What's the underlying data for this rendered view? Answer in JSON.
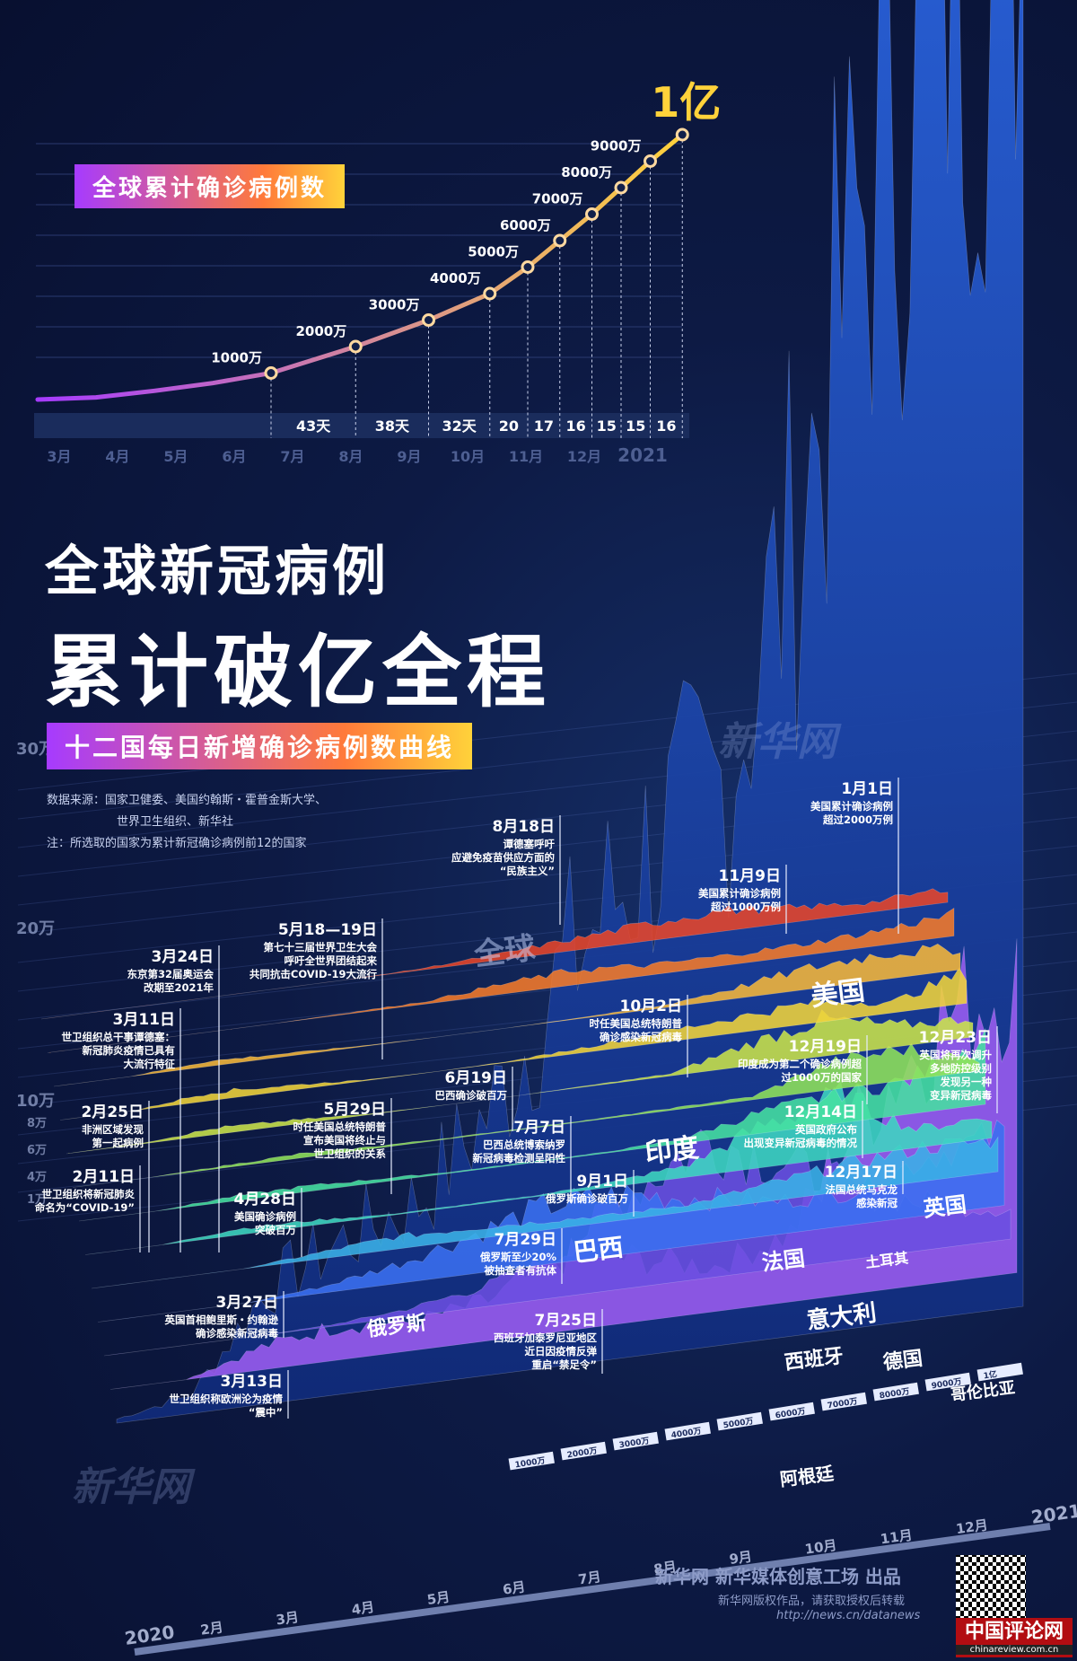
{
  "top_chart": {
    "badge": "全球累计确诊病例数",
    "points": [
      {
        "month": 3,
        "value": 0,
        "label": ""
      },
      {
        "month": 4,
        "value": 80,
        "label": ""
      },
      {
        "month": 5,
        "value": 330,
        "label": ""
      },
      {
        "month": 6,
        "value": 620,
        "label": ""
      },
      {
        "month": 7,
        "value": 1000,
        "label": "1000万"
      },
      {
        "month": 8.45,
        "value": 2000,
        "label": "2000万"
      },
      {
        "month": 9.7,
        "value": 3000,
        "label": "3000万"
      },
      {
        "month": 10.75,
        "value": 4000,
        "label": "4000万"
      },
      {
        "month": 11.4,
        "value": 5000,
        "label": "5000万"
      },
      {
        "month": 11.95,
        "value": 6000,
        "label": "6000万"
      },
      {
        "month": 12.5,
        "value": 7000,
        "label": "7000万"
      },
      {
        "month": 13.0,
        "value": 8000,
        "label": "8000万"
      },
      {
        "month": 13.5,
        "value": 9000,
        "label": "9000万"
      },
      {
        "month": 14.05,
        "value": 10000,
        "label": "1亿"
      }
    ],
    "intervals": [
      "43天",
      "38天",
      "32天",
      "20",
      "17",
      "16",
      "15",
      "15",
      "16"
    ],
    "months": [
      "3月",
      "4月",
      "5月",
      "6月",
      "7月",
      "8月",
      "9月",
      "10月",
      "11月",
      "12月",
      "2021"
    ]
  },
  "title": {
    "line1": "全球新冠病例",
    "line2": "累计破亿全程"
  },
  "subtitle": "十二国每日新增确诊病例数曲线",
  "source": {
    "line1": "数据来源：国家卫健委、美国约翰斯・霍普金斯大学、",
    "line2": "世界卫生组织、新华社",
    "note": "注：所选取的国家为累计新冠确诊病例前12的国家"
  },
  "chart_data": {
    "type": "area",
    "x": [
      "2020",
      "2月",
      "3月",
      "4月",
      "5月",
      "6月",
      "7月",
      "8月",
      "9月",
      "10月",
      "11月",
      "12月",
      "2021"
    ],
    "y_ticks": [
      "1万",
      "4万",
      "6万",
      "8万",
      "10万",
      "20万",
      "30万"
    ],
    "series": [
      {
        "name": "全球",
        "color": "#2a5fd8",
        "values": [
          2,
          10,
          60,
          80,
          95,
          140,
          210,
          260,
          290,
          420,
          600,
          700,
          750
        ]
      },
      {
        "name": "美国",
        "color": "#9b5cf0",
        "values": [
          0,
          0,
          20,
          30,
          25,
          35,
          65,
          55,
          40,
          60,
          160,
          230,
          260
        ]
      },
      {
        "name": "印度",
        "color": "#6a4fe0",
        "values": [
          0,
          0,
          0,
          1,
          5,
          13,
          28,
          65,
          95,
          70,
          45,
          30,
          20
        ]
      },
      {
        "name": "巴西",
        "color": "#3a6ff0",
        "values": [
          0,
          0,
          0,
          5,
          15,
          30,
          45,
          45,
          35,
          25,
          25,
          45,
          55
        ]
      },
      {
        "name": "俄罗斯",
        "color": "#3ab0e6",
        "values": [
          0,
          0,
          0,
          5,
          10,
          9,
          7,
          5,
          6,
          14,
          22,
          28,
          25
        ]
      },
      {
        "name": "法国",
        "color": "#3ed6c0",
        "values": [
          0,
          0,
          5,
          4,
          1,
          1,
          1,
          4,
          10,
          35,
          50,
          15,
          18
        ]
      },
      {
        "name": "英国",
        "color": "#45e0a0",
        "values": [
          0,
          0,
          4,
          5,
          3,
          1,
          1,
          1,
          4,
          18,
          25,
          30,
          60
        ]
      },
      {
        "name": "土耳其",
        "color": "#8fe35a",
        "values": [
          0,
          0,
          2,
          4,
          2,
          1,
          1,
          1,
          2,
          3,
          25,
          30,
          10
        ]
      },
      {
        "name": "意大利",
        "color": "#c9e24a",
        "values": [
          0,
          1,
          6,
          4,
          1,
          0,
          0,
          1,
          2,
          20,
          35,
          20,
          18
        ]
      },
      {
        "name": "西班牙",
        "color": "#f0d33a",
        "values": [
          0,
          0,
          8,
          5,
          1,
          0,
          1,
          5,
          10,
          15,
          20,
          10,
          30
        ]
      },
      {
        "name": "德国",
        "color": "#f5b63a",
        "values": [
          0,
          0,
          5,
          3,
          1,
          0,
          0,
          1,
          2,
          10,
          20,
          25,
          20
        ]
      },
      {
        "name": "哥伦比亚",
        "color": "#f47a2a",
        "values": [
          0,
          0,
          0,
          0,
          1,
          2,
          8,
          12,
          8,
          8,
          9,
          12,
          18
        ]
      },
      {
        "name": "阿根廷",
        "color": "#e6452a",
        "values": [
          0,
          0,
          0,
          0,
          0,
          1,
          4,
          8,
          12,
          15,
          10,
          7,
          10
        ]
      }
    ],
    "depth_ticks": [
      "1000万",
      "2000万",
      "3000万",
      "4000万",
      "5000万",
      "6000万",
      "7000万",
      "8000万",
      "9000万",
      "1亿"
    ]
  },
  "annotations": [
    {
      "date": "2月11日",
      "text": [
        "世卫组织将新冠肺炎",
        "命名为“COVID-19”"
      ]
    },
    {
      "date": "2月25日",
      "text": [
        "非洲区域发现",
        "第一起病例"
      ]
    },
    {
      "date": "3月11日",
      "text": [
        "世卫组织总干事谭德塞：",
        "新冠肺炎疫情已具有",
        "大流行特征"
      ]
    },
    {
      "date": "3月24日",
      "text": [
        "东京第32届奥运会",
        "改期至2021年"
      ]
    },
    {
      "date": "5月18—19日",
      "text": [
        "第七十三届世界卫生大会",
        "呼吁全世界团结起来",
        "共同抗击COVID-19大流行"
      ]
    },
    {
      "date": "8月18日",
      "text": [
        "谭德塞呼吁",
        "应避免疫苗供应方面的",
        "“民族主义”"
      ]
    },
    {
      "date": "11月9日",
      "text": [
        "美国累计确诊病例",
        "超过1000万例"
      ]
    },
    {
      "date": "1月1日",
      "text": [
        "美国累计确诊病例",
        "超过2000万例"
      ]
    },
    {
      "date": "10月2日",
      "text": [
        "时任美国总统特朗普",
        "确诊感染新冠病毒"
      ]
    },
    {
      "date": "12月19日",
      "text": [
        "印度成为第二个确诊病例超",
        "过1000万的国家"
      ]
    },
    {
      "date": "12月23日",
      "text": [
        "英国将再次调升",
        "多地防控级别",
        "发现另一种",
        "变异新冠病毒"
      ]
    },
    {
      "date": "12月14日",
      "text": [
        "英国政府公布",
        "出现变异新冠病毒的情况"
      ]
    },
    {
      "date": "12月17日",
      "text": [
        "法国总统马克龙",
        "感染新冠"
      ]
    },
    {
      "date": "6月19日",
      "text": [
        "巴西确诊破百万"
      ]
    },
    {
      "date": "5月29日",
      "text": [
        "时任美国总统特朗普",
        "宣布美国将终止与",
        "世卫组织的关系"
      ]
    },
    {
      "date": "7月7日",
      "text": [
        "巴西总统博索纳罗",
        "新冠病毒检测呈阳性"
      ]
    },
    {
      "date": "9月1日",
      "text": [
        "俄罗斯确诊破百万"
      ]
    },
    {
      "date": "4月28日",
      "text": [
        "美国确诊病例",
        "突破百万"
      ]
    },
    {
      "date": "7月29日",
      "text": [
        "俄罗斯至少20%",
        "被抽查者有抗体"
      ]
    },
    {
      "date": "3月27日",
      "text": [
        "英国首相鲍里斯・约翰逊",
        "确诊感染新冠病毒"
      ]
    },
    {
      "date": "7月25日",
      "text": [
        "西班牙加泰罗尼亚地区",
        "近日因疫情反弹",
        "重启“禁足令”"
      ]
    },
    {
      "date": "3月13日",
      "text": [
        "世卫组织称欧洲沦为疫情",
        "“震中”"
      ]
    }
  ],
  "footer": {
    "credit": "新华网 新华媒体创意工场 出品",
    "rights": "新华网版权作品，请获取授权后转载",
    "url": "http://news.cn/datanews",
    "logo_name": "中国评论网",
    "logo_url": "chinareview.com.cn"
  },
  "watermark": "新华网"
}
